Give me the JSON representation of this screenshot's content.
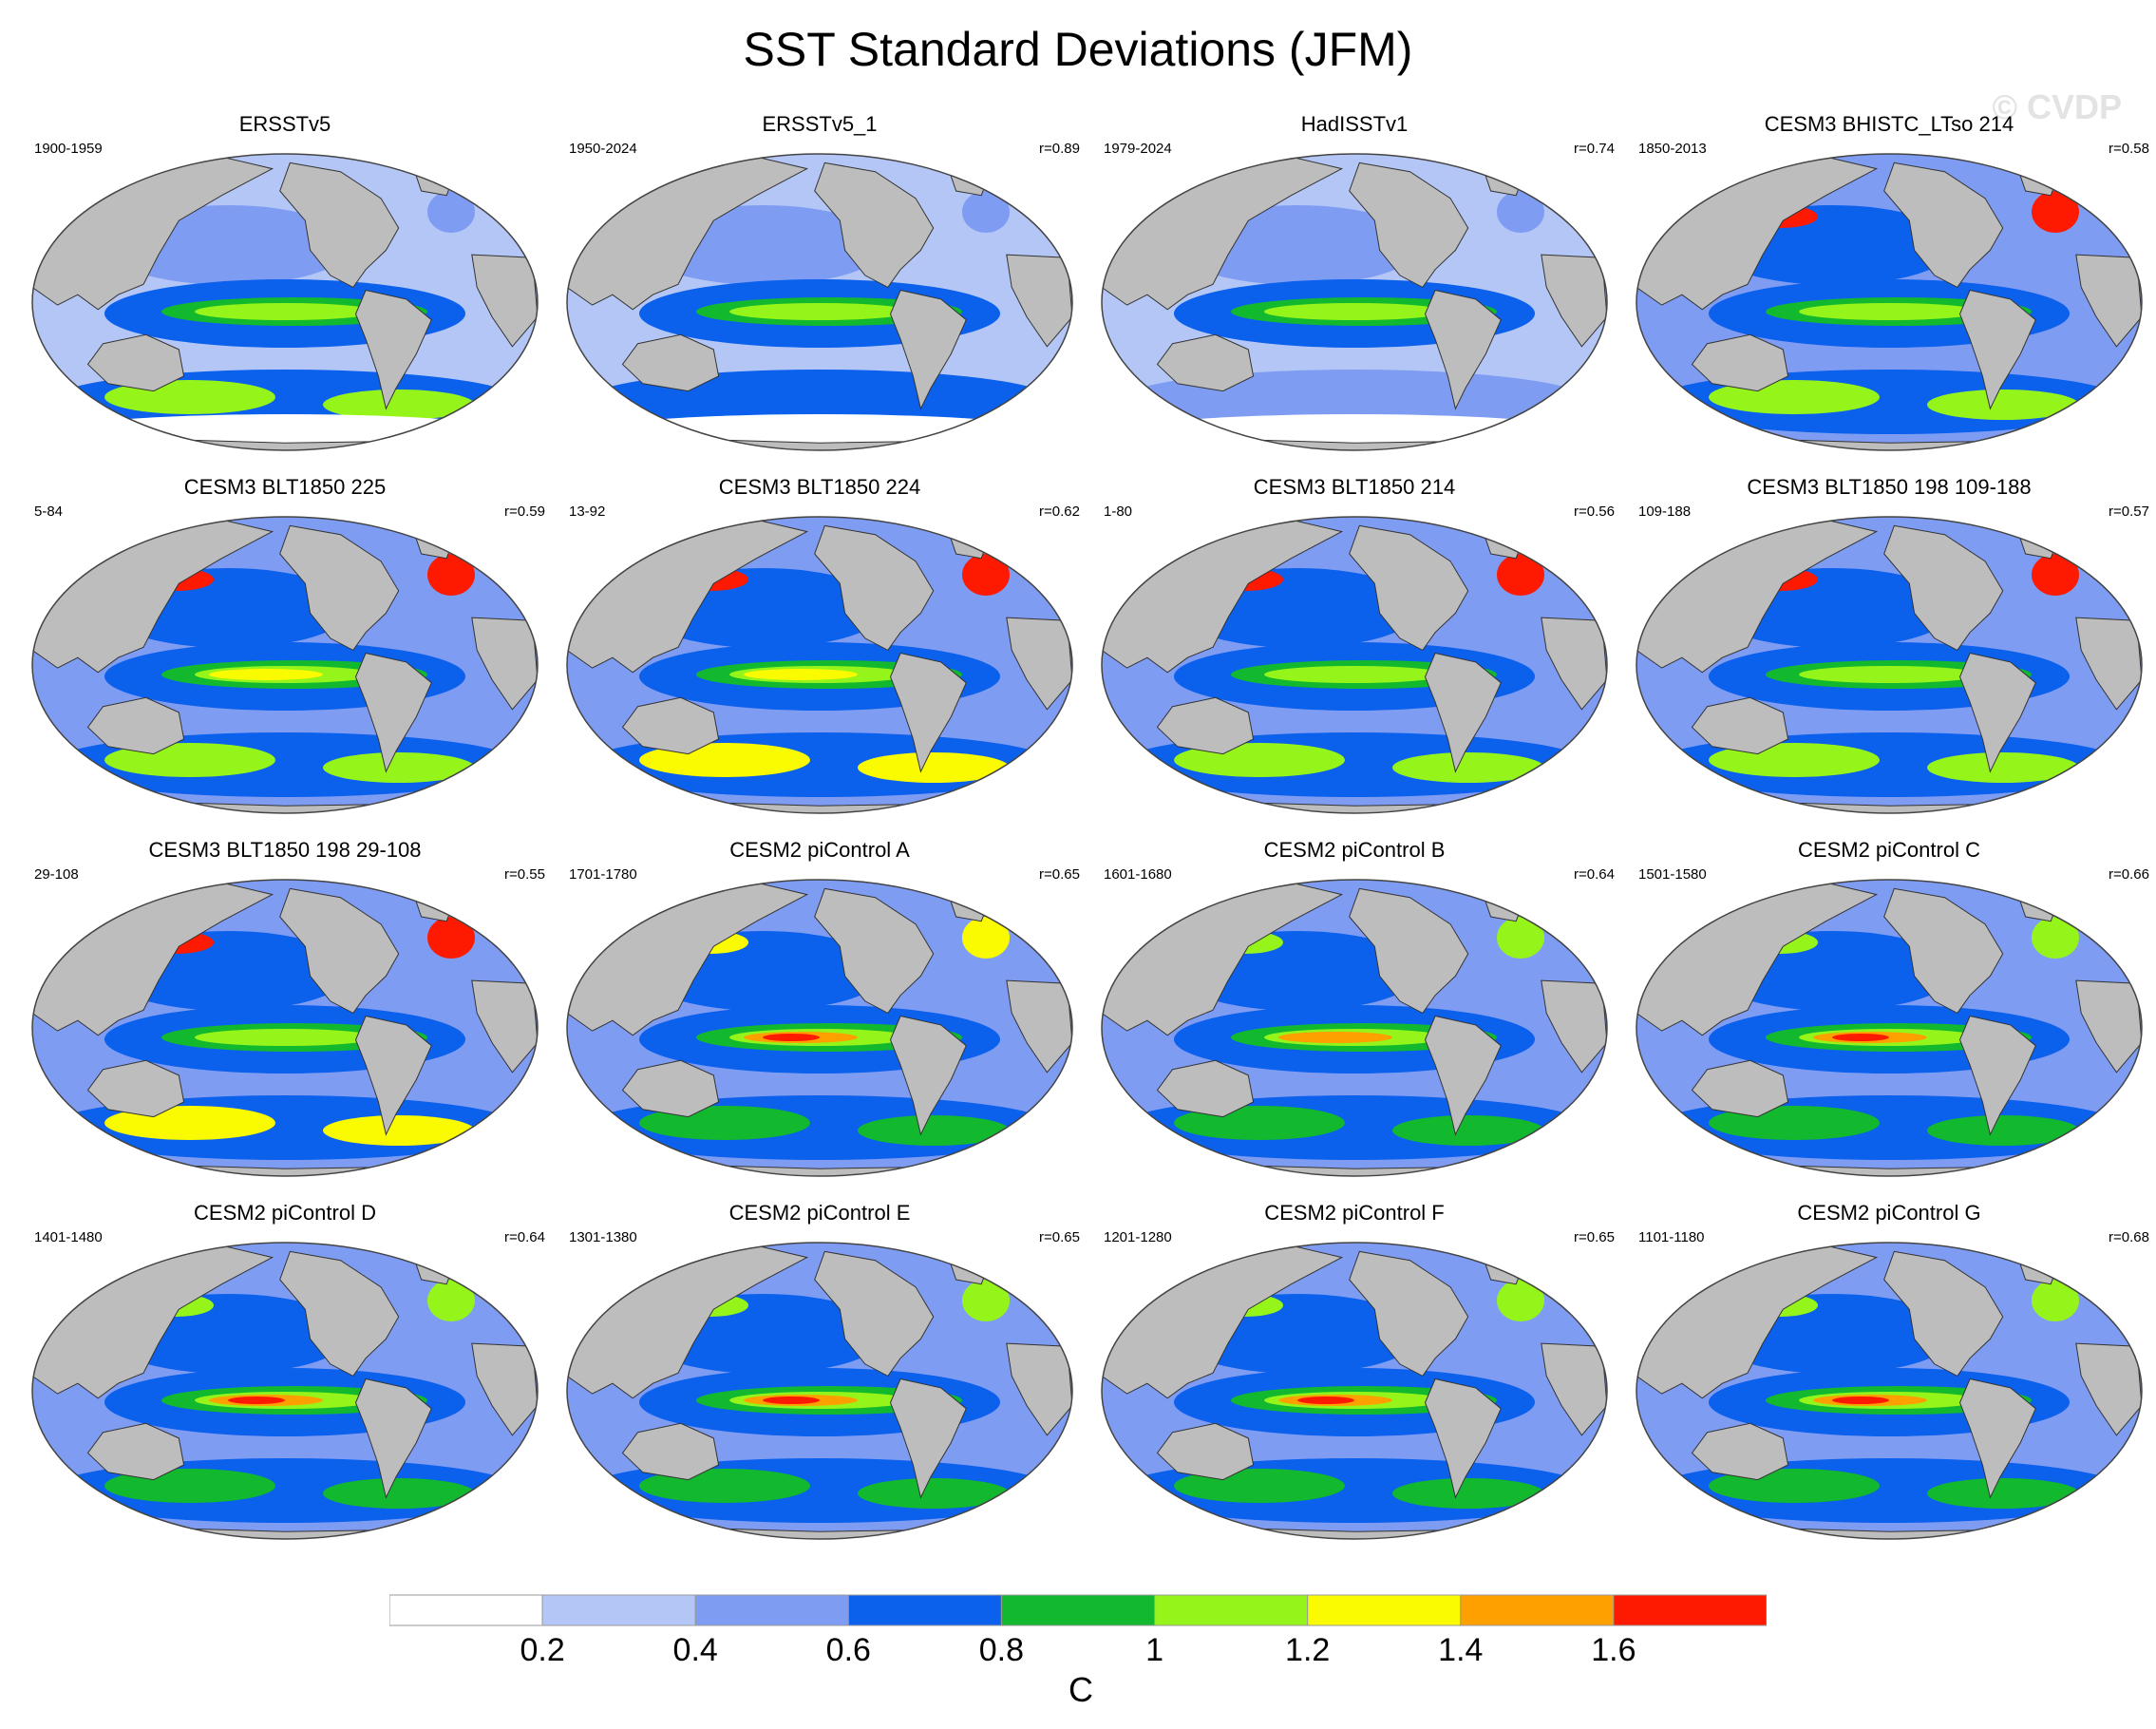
{
  "title": "SST Standard Deviations (JFM)",
  "watermark": "© CVDP",
  "colors": {
    "land": "#bdbdbd",
    "levels": [
      "#ffffff",
      "#b3c6f6",
      "#7f9cf3",
      "#0b60ec",
      "#12b92e",
      "#95f51b",
      "#fafa00",
      "#fea000",
      "#fd1a00"
    ]
  },
  "panels": [
    {
      "title": "ERSSTv5",
      "period": "1900-1959",
      "r": "",
      "style": "obs",
      "nino": 1.1,
      "north": 0.5,
      "south": 1.0
    },
    {
      "title": "ERSSTv5_1",
      "period": "1950-2024",
      "r": "r=0.89",
      "style": "obs",
      "nino": 1.1,
      "north": 0.4,
      "south": 0.7
    },
    {
      "title": "HadISSTv1",
      "period": "1979-2024",
      "r": "r=0.74",
      "style": "obs",
      "nino": 1.1,
      "north": 0.4,
      "south": 0.6
    },
    {
      "title": "CESM3 BHISTC_LTso 214",
      "period": "1850-2013",
      "r": "r=0.58",
      "style": "cesm3",
      "nino": 1.1,
      "north": 1.7,
      "south": 1.2
    },
    {
      "title": "CESM3 BLT1850 225",
      "period": "5-84",
      "r": "r=0.59",
      "style": "cesm3",
      "nino": 1.3,
      "north": 1.7,
      "south": 1.2
    },
    {
      "title": "CESM3 BLT1850 224",
      "period": "13-92",
      "r": "r=0.62",
      "style": "cesm3",
      "nino": 1.3,
      "north": 1.7,
      "south": 1.3
    },
    {
      "title": "CESM3 BLT1850 214",
      "period": "1-80",
      "r": "r=0.56",
      "style": "cesm3",
      "nino": 1.1,
      "north": 1.7,
      "south": 1.2
    },
    {
      "title": "CESM3 BLT1850 198 109-188",
      "period": "109-188",
      "r": "r=0.57",
      "style": "cesm3",
      "nino": 1.1,
      "north": 1.7,
      "south": 1.2
    },
    {
      "title": "CESM3 BLT1850 198 29-108",
      "period": "29-108",
      "r": "r=0.55",
      "style": "cesm3",
      "nino": 1.1,
      "north": 1.7,
      "south": 1.3
    },
    {
      "title": "CESM2 piControl A",
      "period": "1701-1780",
      "r": "r=0.65",
      "style": "cesm2",
      "nino": 1.7,
      "north": 1.4,
      "south": 0.8
    },
    {
      "title": "CESM2 piControl B",
      "period": "1601-1680",
      "r": "r=0.64",
      "style": "cesm2",
      "nino": 1.5,
      "north": 1.0,
      "south": 0.8
    },
    {
      "title": "CESM2 piControl C",
      "period": "1501-1580",
      "r": "r=0.66",
      "style": "cesm2",
      "nino": 1.7,
      "north": 1.0,
      "south": 0.9
    },
    {
      "title": "CESM2 piControl D",
      "period": "1401-1480",
      "r": "r=0.64",
      "style": "cesm2",
      "nino": 1.7,
      "north": 1.0,
      "south": 0.9
    },
    {
      "title": "CESM2 piControl E",
      "period": "1301-1380",
      "r": "r=0.65",
      "style": "cesm2",
      "nino": 1.7,
      "north": 1.0,
      "south": 0.9
    },
    {
      "title": "CESM2 piControl F",
      "period": "1201-1280",
      "r": "r=0.65",
      "style": "cesm2",
      "nino": 1.7,
      "north": 1.0,
      "south": 0.9
    },
    {
      "title": "CESM2 piControl G",
      "period": "1101-1180",
      "r": "r=0.68",
      "style": "cesm2",
      "nino": 1.7,
      "north": 1.0,
      "south": 0.9
    }
  ],
  "colorbar": {
    "labels": [
      "0.2",
      "0.4",
      "0.6",
      "0.8",
      "1",
      "1.2",
      "1.4",
      "1.6"
    ],
    "units": "C"
  }
}
